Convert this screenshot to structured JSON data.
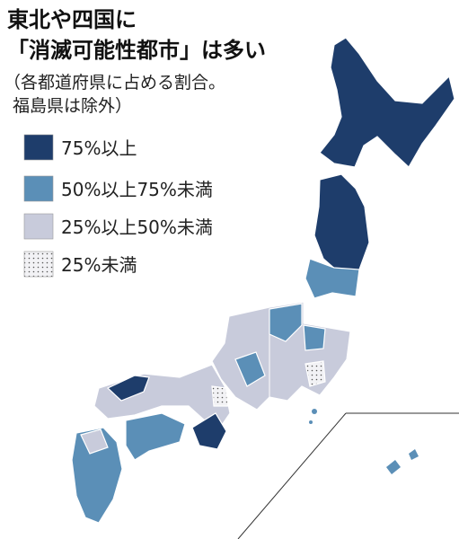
{
  "header": {
    "title_lines": [
      "東北や四国に",
      "「消滅可能性都市」は多い"
    ],
    "subtitle_lines": [
      "（各都道府県に占める割合。",
      "福島県は除外）"
    ]
  },
  "legend": {
    "items": [
      "75%以上",
      "50%以上75%未満",
      "25%以上50%未満",
      "25%未満"
    ]
  }
}
